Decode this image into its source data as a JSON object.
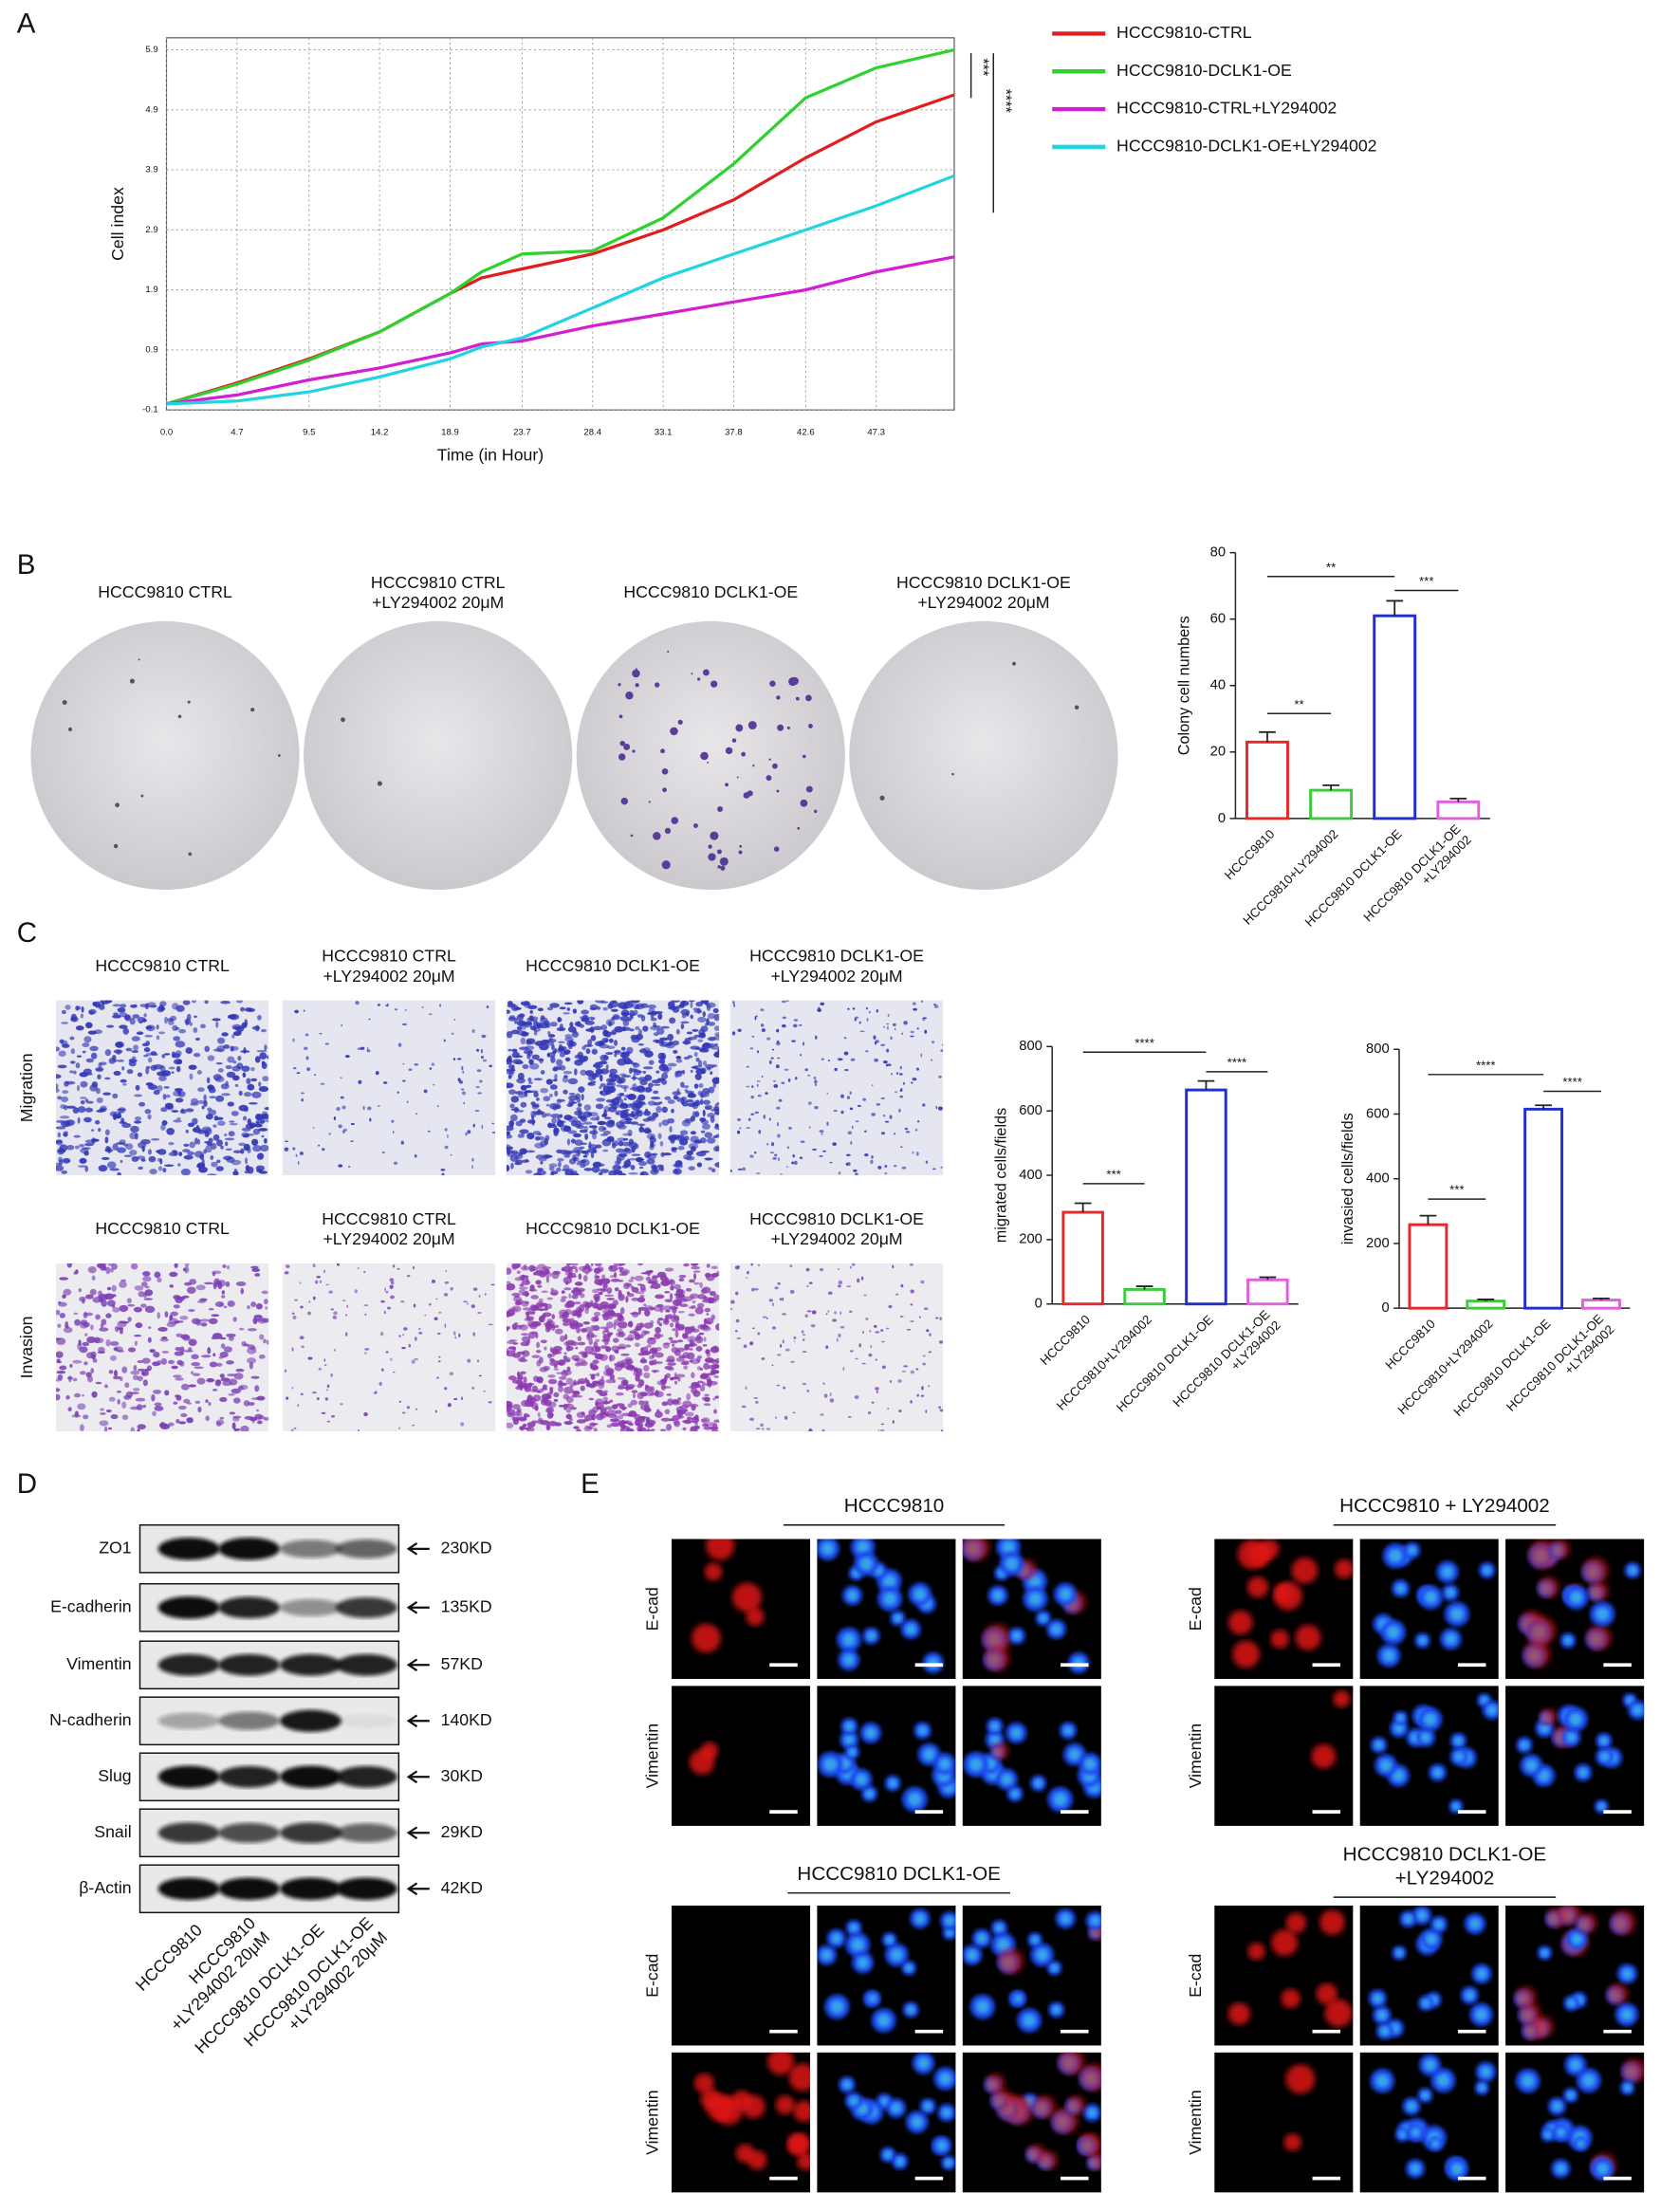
{
  "panel_labels": [
    "A",
    "B",
    "C",
    "D",
    "E"
  ],
  "chart_data": [
    {
      "type": "line",
      "xlabel": "Time (in Hour)",
      "ylabel": "Cell index",
      "x": [
        0,
        4.7,
        9.5,
        14.2,
        18.9,
        21,
        23.7,
        28.4,
        33.1,
        37.8,
        42.6,
        47.3,
        52.5
      ],
      "series": [
        {
          "name": "HCCC9810-CTRL",
          "color": "#e11d1d",
          "values": [
            0,
            0.35,
            0.75,
            1.2,
            1.84,
            2.1,
            2.25,
            2.5,
            2.9,
            3.4,
            4.1,
            4.7,
            5.15
          ]
        },
        {
          "name": "HCCC9810-DCLK1-OE",
          "color": "#2fd12f",
          "values": [
            0,
            0.33,
            0.73,
            1.2,
            1.84,
            2.2,
            2.5,
            2.55,
            3.1,
            4.0,
            5.1,
            5.6,
            5.9
          ]
        },
        {
          "name": "HCCC9810-CTRL+LY294002",
          "color": "#d21fd2",
          "values": [
            0,
            0.15,
            0.4,
            0.6,
            0.85,
            1.0,
            1.05,
            1.3,
            1.5,
            1.7,
            1.9,
            2.2,
            2.45
          ]
        },
        {
          "name": "HCCC9810-DCLK1-OE+LY294002",
          "color": "#22d3e0",
          "values": [
            0,
            0.05,
            0.2,
            0.45,
            0.75,
            0.95,
            1.1,
            1.6,
            2.1,
            2.5,
            2.9,
            3.3,
            3.8
          ]
        }
      ],
      "xlim": [
        0,
        52.5
      ],
      "ylim": [
        -0.1,
        6.1
      ],
      "xticks": [
        {
          "value": 0,
          "label": "0.0"
        },
        4.7,
        9.5,
        14.2,
        18.9,
        23.7,
        28.4,
        33.1,
        37.8,
        42.6,
        47.3
      ],
      "yticks": [
        -0.1,
        0.9,
        1.9,
        2.9,
        3.9,
        4.9,
        5.9
      ],
      "grid": true,
      "annotations": [
        "***",
        "****"
      ]
    },
    {
      "type": "bar",
      "ylabel": "Colony cell numbers",
      "categories": [
        "HCCC9810",
        "HCCC9810+LY294002",
        "HCCC9810 DCLK1-OE",
        "HCCC9810 DCLK1-OE\n+LY294002"
      ],
      "values": [
        23,
        8.5,
        61,
        5
      ],
      "errors": [
        3,
        1.5,
        4.5,
        1
      ],
      "colors": [
        "#e8282b",
        "#3ec93e",
        "#1f2fd0",
        "#e060e0"
      ],
      "ylim": [
        0,
        80
      ],
      "yticks": [
        0,
        20,
        40,
        60,
        80
      ],
      "annotations": [
        "**",
        "**",
        "***"
      ]
    },
    {
      "type": "bar",
      "ylabel": "migrated cells/fields",
      "categories": [
        "HCCC9810",
        "HCCC9810+LY294002",
        "HCCC9810 DCLK1-OE",
        "HCCC9810 DCLK1-OE\n+LY294002"
      ],
      "values": [
        285,
        45,
        665,
        75
      ],
      "errors": [
        28,
        10,
        28,
        8
      ],
      "colors": [
        "#e8282b",
        "#3ec93e",
        "#1f2fd0",
        "#e060e0"
      ],
      "ylim": [
        0,
        800
      ],
      "yticks": [
        0,
        200,
        400,
        600,
        800
      ],
      "annotations": [
        "***",
        "****",
        "****"
      ]
    },
    {
      "type": "bar",
      "ylabel": "invasied cells/fields",
      "categories": [
        "HCCC9810",
        "HCCC9810+LY294002",
        "HCCC9810 DCLK1-OE",
        "HCCC9810 DCLK1-OE\n+LY294002"
      ],
      "values": [
        258,
        22,
        615,
        25
      ],
      "errors": [
        28,
        5,
        12,
        5
      ],
      "colors": [
        "#e8282b",
        "#3ec93e",
        "#1f2fd0",
        "#e060e0"
      ],
      "ylim": [
        0,
        800
      ],
      "yticks": [
        0,
        200,
        400,
        600,
        800
      ],
      "annotations": [
        "***",
        "****",
        "****"
      ]
    }
  ],
  "colony": {
    "labels": [
      "HCCC9810 CTRL",
      "HCCC9810 CTRL\n+LY294002 20μM",
      "HCCC9810 DCLK1-OE",
      "HCCC9810 DCLK1-OE\n+LY294002 20μM"
    ]
  },
  "transwell": {
    "rows": [
      {
        "name": "Migration",
        "columns": [
          "HCCC9810 CTRL",
          "HCCC9810 CTRL\n+LY294002 20μM",
          "HCCC9810 DCLK1-OE",
          "HCCC9810 DCLK1-OE\n+LY294002 20μM"
        ]
      },
      {
        "name": "Invasion",
        "columns": [
          "HCCC9810 CTRL",
          "HCCC9810 CTRL\n+LY294002 20μM",
          "HCCC9810 DCLK1-OE",
          "HCCC9810 DCLK1-OE\n+LY294002 20μM"
        ]
      }
    ]
  },
  "western": {
    "proteins": [
      "ZO1",
      "E-cadherin",
      "Vimentin",
      "N-cadherin",
      "Slug",
      "Snail",
      "β-Actin"
    ],
    "sizes": [
      "230KD",
      "135KD",
      "57KD",
      "140KD",
      "30KD",
      "29KD",
      "42KD"
    ],
    "lanes": [
      "HCCC9810",
      "HCCC9810\n+LY294002 20μM",
      "HCCC9810 DCLK1-OE",
      "HCCC9810 DCLK1-OE\n+LY294002 20μM"
    ]
  },
  "immunofluorescence": {
    "panels": [
      {
        "title": "HCCC9810",
        "rows": [
          "E-cad",
          "Vimentin"
        ]
      },
      {
        "title": "HCCC9810 + LY294002",
        "rows": [
          "E-cad",
          "Vimentin"
        ]
      },
      {
        "title": "HCCC9810 DCLK1-OE",
        "rows": [
          "E-cad",
          "Vimentin"
        ]
      },
      {
        "title": "HCCC9810 DCLK1-OE\n+LY294002",
        "rows": [
          "E-cad",
          "Vimentin"
        ]
      }
    ]
  }
}
